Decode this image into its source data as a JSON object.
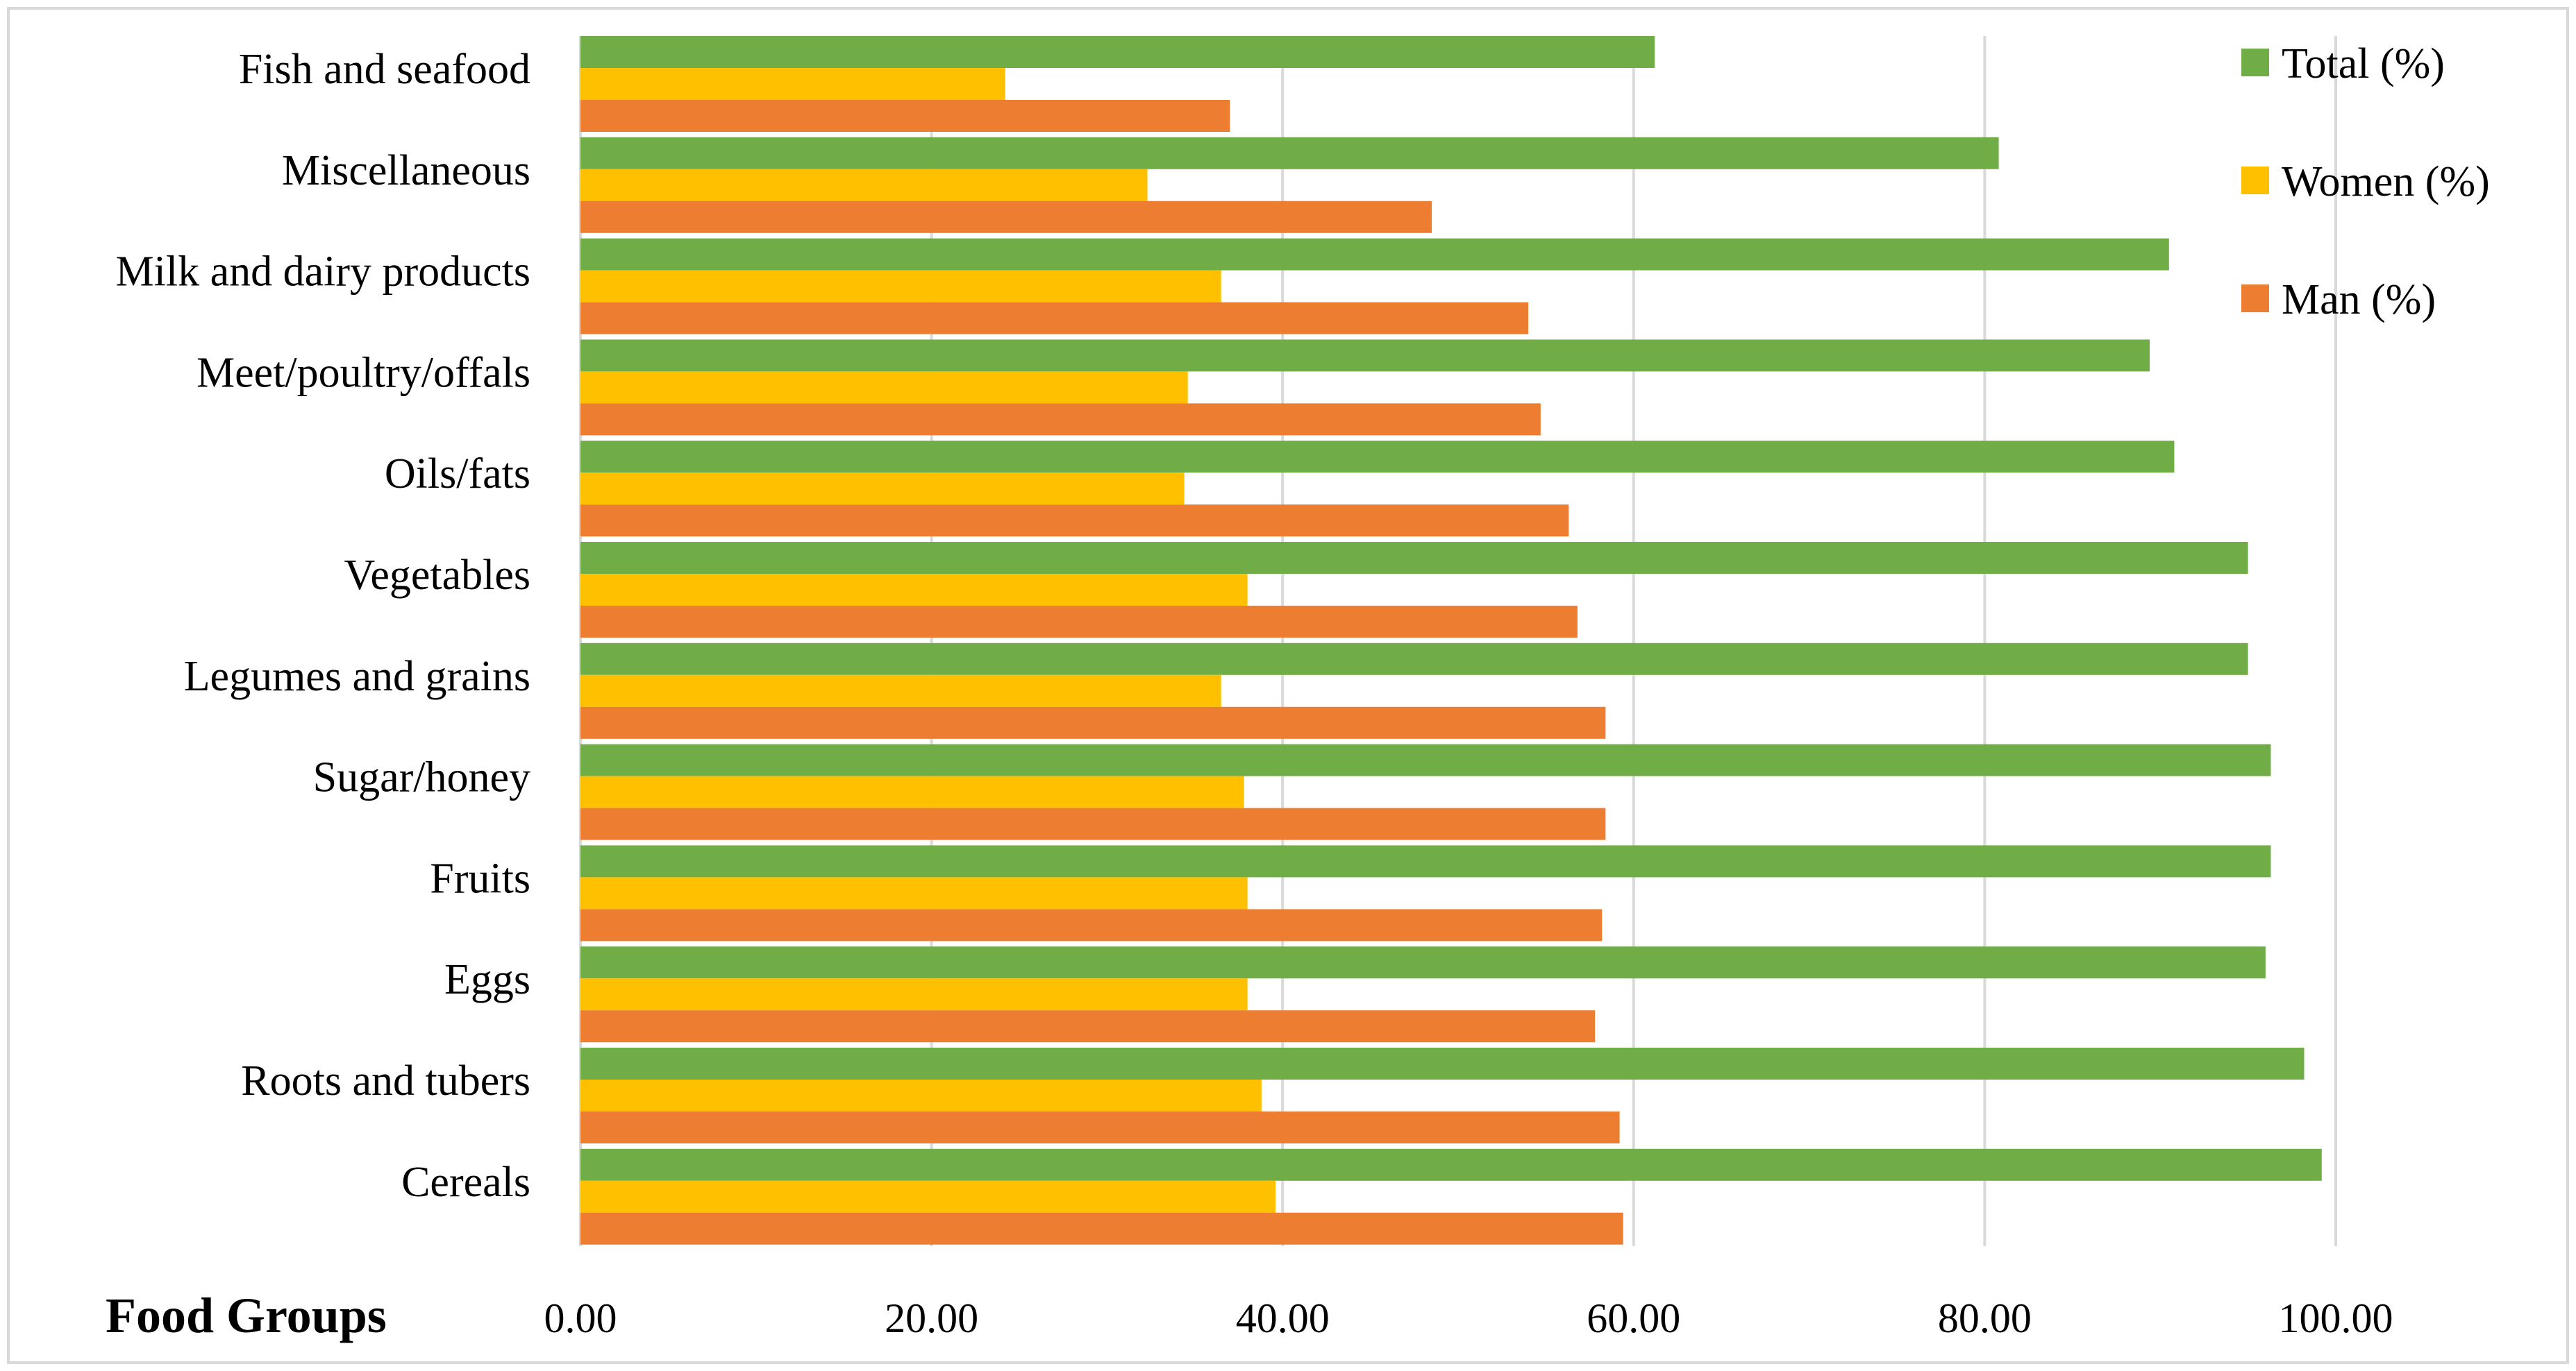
{
  "chart_data": {
    "type": "bar",
    "orientation": "horizontal",
    "title": "",
    "xlabel": "",
    "ylabel": "Food Groups",
    "xlim": [
      0,
      100
    ],
    "xticks": [
      0,
      20,
      40,
      60,
      80,
      100
    ],
    "xtick_labels": [
      "0.00",
      "20.00",
      "40.00",
      "60.00",
      "80.00",
      "100.00"
    ],
    "grid": "vertical",
    "legend_position": "top-right",
    "categories": [
      "Fish and seafood",
      "Miscellaneous",
      "Milk and dairy products",
      "Meet/poultry/offals",
      "Oils/fats",
      "Vegetables",
      "Legumes and grains",
      "Sugar/honey",
      "Fruits",
      "Eggs",
      "Roots and tubers",
      "Cereals"
    ],
    "series": [
      {
        "name": "Total (%)",
        "color": "#70ad47",
        "values": [
          61.2,
          80.8,
          90.5,
          89.4,
          90.8,
          95.0,
          95.0,
          96.3,
          96.3,
          96.0,
          98.2,
          99.2
        ]
      },
      {
        "name": "Women (%)",
        "color": "#ffc000",
        "values": [
          24.2,
          32.3,
          36.5,
          34.6,
          34.4,
          38.0,
          36.5,
          37.8,
          38.0,
          38.0,
          38.8,
          39.6
        ]
      },
      {
        "name": "Man (%)",
        "color": "#ed7d31",
        "values": [
          37.0,
          48.5,
          54.0,
          54.7,
          56.3,
          56.8,
          58.4,
          58.4,
          58.2,
          57.8,
          59.2,
          59.4
        ]
      }
    ]
  }
}
